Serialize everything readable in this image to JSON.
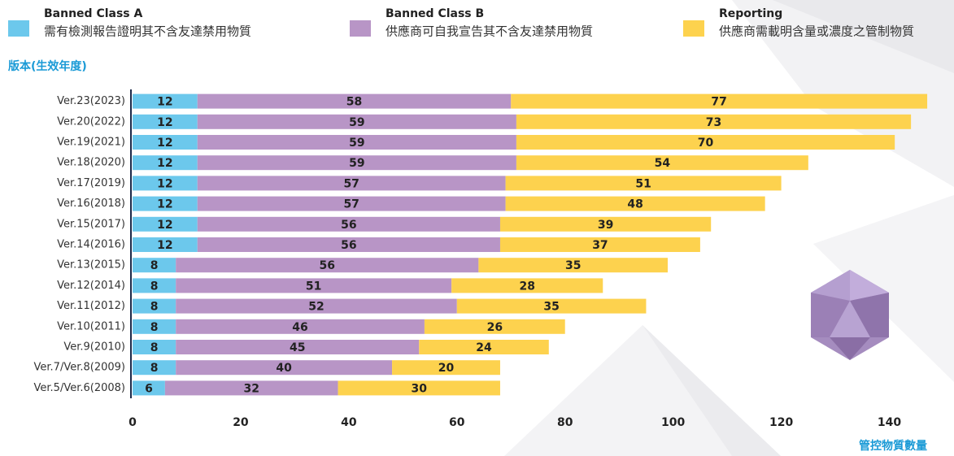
{
  "chart_data": {
    "type": "stacked-bar-horizontal",
    "y_axis_title": "版本(生效年度)",
    "x_axis_title": "管控物質數量",
    "categories": [
      "Ver.23(2023)",
      "Ver.20(2022)",
      "Ver.19(2021)",
      "Ver.18(2020)",
      "Ver.17(2019)",
      "Ver.16(2018)",
      "Ver.15(2017)",
      "Ver.14(2016)",
      "Ver.13(2015)",
      "Ver.12(2014)",
      "Ver.11(2012)",
      "Ver.10(2011)",
      "Ver.9(2010)",
      "Ver.7/Ver.8(2009)",
      "Ver.5/Ver.6(2008)"
    ],
    "series": [
      {
        "name": "Banned Class A",
        "description": "需有檢測報告證明其不含友達禁用物質",
        "color": "#6cc8ec",
        "values": [
          12,
          12,
          12,
          12,
          12,
          12,
          12,
          12,
          8,
          8,
          8,
          8,
          8,
          8,
          6
        ]
      },
      {
        "name": "Banned Class B",
        "description": "供應商可自我宣告其不含友達禁用物質",
        "color": "#b895c6",
        "values": [
          58,
          59,
          59,
          59,
          57,
          57,
          56,
          56,
          56,
          51,
          52,
          46,
          45,
          40,
          32
        ]
      },
      {
        "name": "Reporting",
        "description": "供應商需載明含量或濃度之管制物質",
        "color": "#fdd24e",
        "values": [
          77,
          73,
          70,
          54,
          51,
          48,
          39,
          37,
          35,
          28,
          35,
          26,
          24,
          20,
          30
        ]
      }
    ],
    "xlim": [
      0,
      150
    ],
    "xticks": [
      0,
      20,
      40,
      60,
      80,
      100,
      120,
      140
    ]
  }
}
